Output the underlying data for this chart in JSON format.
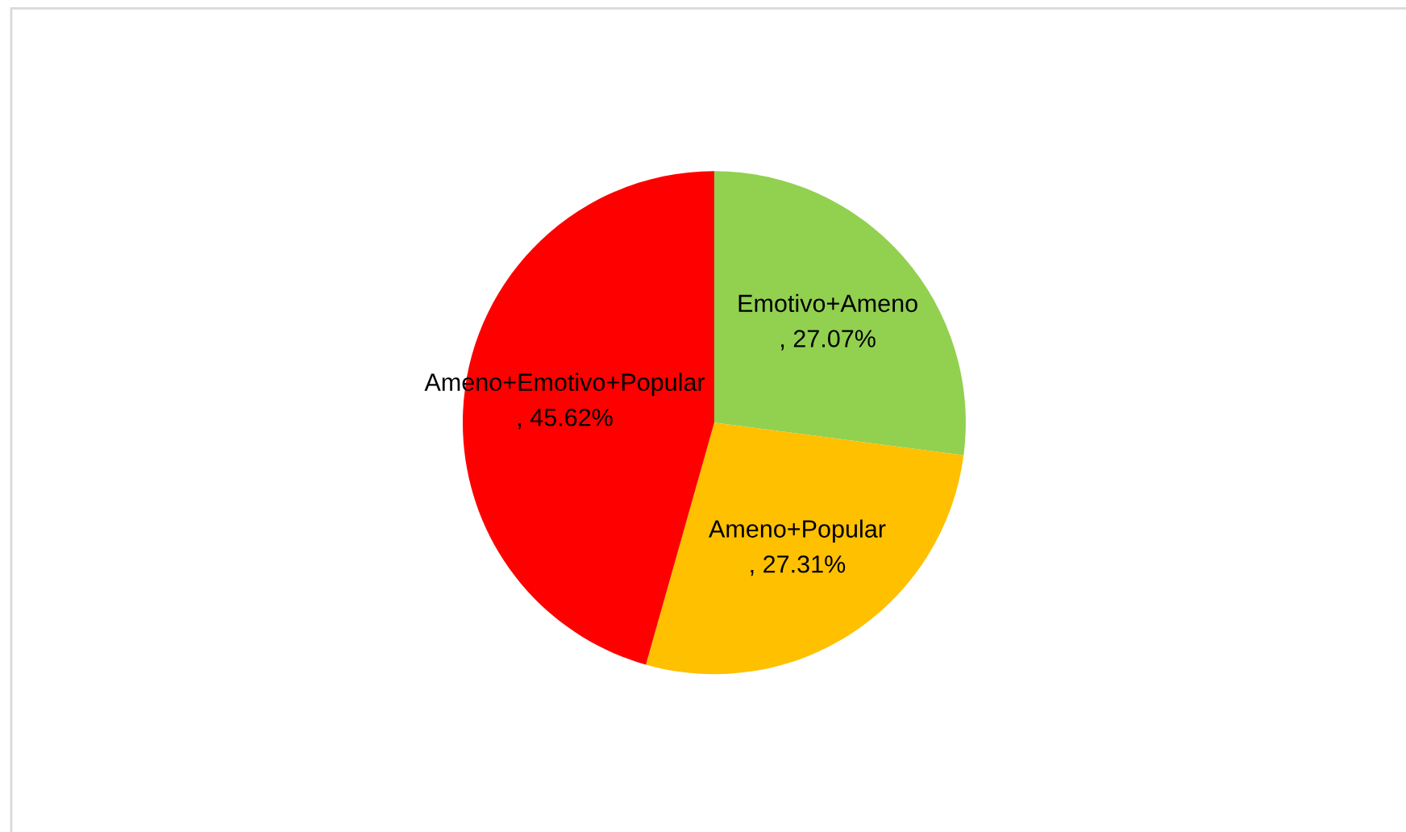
{
  "chart_data": {
    "type": "pie",
    "categories": [
      "Emotivo+Ameno",
      "Ameno+Popular",
      "Ameno+Emotivo+Popular"
    ],
    "values": [
      27.07,
      27.31,
      45.62
    ],
    "value_labels": [
      ", 27.07%",
      ", 27.31%",
      ", 45.62%"
    ],
    "colors": [
      "#92d050",
      "#ffc000",
      "#ff0000"
    ]
  }
}
